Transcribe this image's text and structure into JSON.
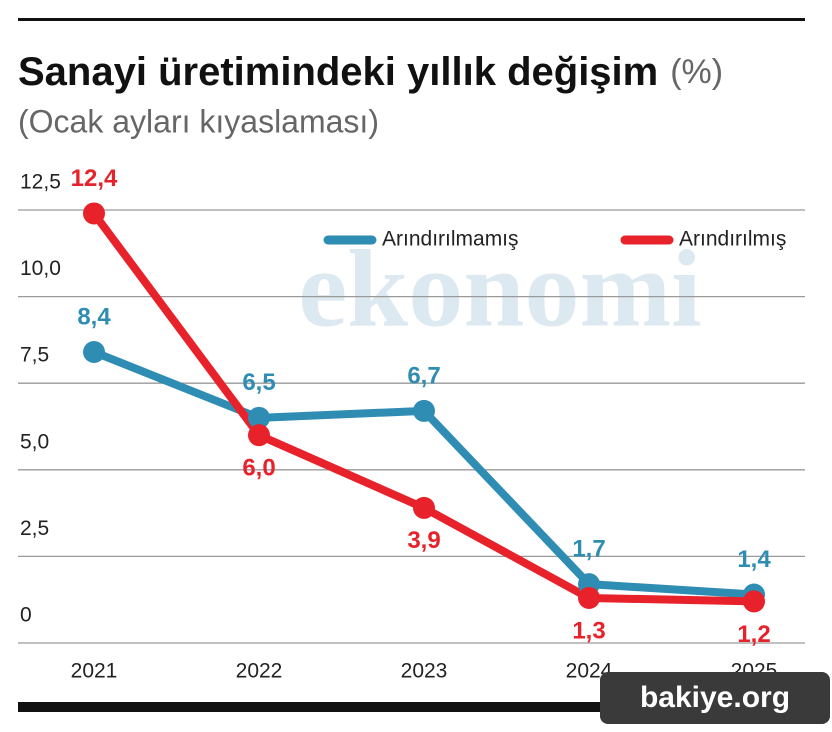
{
  "chart_data": {
    "type": "line",
    "title": "Sanayi üretimindeki yıllık değişim",
    "title_unit": "(%)",
    "subtitle": "(Ocak ayları kıyaslaması)",
    "categories": [
      "2021",
      "2022",
      "2023",
      "2024",
      "2025"
    ],
    "series": [
      {
        "name": "Arındırılmamış",
        "color": "#2f8db3",
        "values": [
          8.4,
          6.5,
          6.7,
          1.7,
          1.4
        ],
        "value_labels": [
          "8,4",
          "6,5",
          "6,7",
          "1,7",
          "1,4"
        ]
      },
      {
        "name": "Arındırılmış",
        "color": "#e8222b",
        "values": [
          12.4,
          6.0,
          3.9,
          1.3,
          1.2
        ],
        "value_labels": [
          "12,4",
          "6,0",
          "3,9",
          "1,3",
          "1,2"
        ]
      }
    ],
    "ylim": [
      0,
      12.5
    ],
    "yticks": [
      0,
      {
        "value": 2.5,
        "label": "2,5"
      },
      {
        "value": 5.0,
        "label": "5,0"
      },
      {
        "value": 7.5,
        "label": "7,5"
      },
      {
        "value": 10.0,
        "label": "10,0"
      },
      {
        "value": 12.5,
        "label": "12,5"
      }
    ],
    "grid": true
  },
  "watermark": "ekonomi",
  "source_badge": "bakiye.org"
}
